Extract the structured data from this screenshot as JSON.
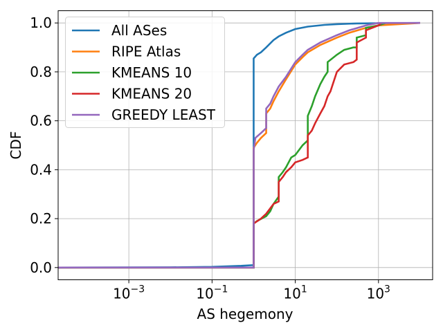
{
  "chart_data": {
    "type": "line",
    "title": "",
    "xlabel": "AS hegemony",
    "ylabel": "CDF",
    "xscale": "log",
    "xlim": [
      2e-05,
      20000
    ],
    "ylim": [
      -0.05,
      1.05
    ],
    "x_ticks": [
      {
        "value": 0.001,
        "base": "10",
        "exp": "−3"
      },
      {
        "value": 0.1,
        "base": "10",
        "exp": "−1"
      },
      {
        "value": 10,
        "base": "10",
        "exp": "1"
      },
      {
        "value": 1000,
        "base": "10",
        "exp": "3"
      }
    ],
    "y_ticks": [
      {
        "value": 0.0,
        "label": "0.0"
      },
      {
        "value": 0.2,
        "label": "0.2"
      },
      {
        "value": 0.4,
        "label": "0.4"
      },
      {
        "value": 0.6,
        "label": "0.6"
      },
      {
        "value": 0.8,
        "label": "0.8"
      },
      {
        "value": 1.0,
        "label": "1.0"
      }
    ],
    "grid": true,
    "legend": {
      "position": "top-left"
    },
    "series": [
      {
        "name": "All ASes",
        "color": "#1f77b4",
        "points": [
          [
            2e-05,
            0.0
          ],
          [
            0.01,
            0.001
          ],
          [
            0.1,
            0.003
          ],
          [
            0.5,
            0.007
          ],
          [
            1.0,
            0.01
          ],
          [
            1.0,
            0.855
          ],
          [
            1.2,
            0.87
          ],
          [
            1.5,
            0.88
          ],
          [
            2.0,
            0.9
          ],
          [
            3.0,
            0.93
          ],
          [
            4.0,
            0.945
          ],
          [
            6.0,
            0.96
          ],
          [
            10,
            0.975
          ],
          [
            20,
            0.985
          ],
          [
            50,
            0.992
          ],
          [
            100,
            0.995
          ],
          [
            300,
            0.998
          ],
          [
            1000,
            0.999
          ],
          [
            10000,
            1.0
          ]
        ]
      },
      {
        "name": "RIPE Atlas",
        "color": "#ff7f0e",
        "points": [
          [
            2e-05,
            0.0
          ],
          [
            1.0,
            0.0
          ],
          [
            1.0,
            0.49
          ],
          [
            1.2,
            0.51
          ],
          [
            1.5,
            0.53
          ],
          [
            2.0,
            0.55
          ],
          [
            2.0,
            0.63
          ],
          [
            2.5,
            0.65
          ],
          [
            3.0,
            0.68
          ],
          [
            4.0,
            0.72
          ],
          [
            6.0,
            0.77
          ],
          [
            10,
            0.83
          ],
          [
            15,
            0.86
          ],
          [
            20,
            0.88
          ],
          [
            40,
            0.91
          ],
          [
            100,
            0.94
          ],
          [
            200,
            0.96
          ],
          [
            500,
            0.98
          ],
          [
            1000,
            0.99
          ],
          [
            10000,
            1.0
          ]
        ]
      },
      {
        "name": "KMEANS 10",
        "color": "#2ca02c",
        "points": [
          [
            2e-05,
            0.0
          ],
          [
            1.0,
            0.0
          ],
          [
            1.0,
            0.18
          ],
          [
            1.2,
            0.19
          ],
          [
            2.0,
            0.21
          ],
          [
            2.5,
            0.23
          ],
          [
            3.0,
            0.26
          ],
          [
            4.0,
            0.29
          ],
          [
            4.0,
            0.37
          ],
          [
            5.0,
            0.39
          ],
          [
            6.0,
            0.41
          ],
          [
            8.0,
            0.45
          ],
          [
            10,
            0.46
          ],
          [
            15,
            0.5
          ],
          [
            20,
            0.52
          ],
          [
            20,
            0.62
          ],
          [
            25,
            0.66
          ],
          [
            30,
            0.7
          ],
          [
            40,
            0.75
          ],
          [
            50,
            0.78
          ],
          [
            60,
            0.8
          ],
          [
            60,
            0.84
          ],
          [
            100,
            0.87
          ],
          [
            150,
            0.89
          ],
          [
            250,
            0.9
          ],
          [
            300,
            0.9
          ],
          [
            300,
            0.94
          ],
          [
            500,
            0.95
          ],
          [
            500,
            0.98
          ],
          [
            1000,
            0.99
          ],
          [
            1500,
            1.0
          ]
        ]
      },
      {
        "name": "KMEANS 20",
        "color": "#d62728",
        "points": [
          [
            2e-05,
            0.0
          ],
          [
            1.0,
            0.0
          ],
          [
            1.0,
            0.18
          ],
          [
            1.5,
            0.2
          ],
          [
            2.0,
            0.22
          ],
          [
            3.0,
            0.26
          ],
          [
            4.0,
            0.27
          ],
          [
            4.0,
            0.35
          ],
          [
            5.0,
            0.37
          ],
          [
            6.0,
            0.39
          ],
          [
            8.0,
            0.41
          ],
          [
            10,
            0.43
          ],
          [
            15,
            0.44
          ],
          [
            20,
            0.45
          ],
          [
            20,
            0.54
          ],
          [
            25,
            0.56
          ],
          [
            30,
            0.59
          ],
          [
            40,
            0.63
          ],
          [
            50,
            0.66
          ],
          [
            60,
            0.7
          ],
          [
            70,
            0.72
          ],
          [
            80,
            0.75
          ],
          [
            100,
            0.8
          ],
          [
            150,
            0.83
          ],
          [
            250,
            0.84
          ],
          [
            300,
            0.85
          ],
          [
            300,
            0.92
          ],
          [
            500,
            0.94
          ],
          [
            500,
            0.97
          ],
          [
            1000,
            0.99
          ],
          [
            1200,
            1.0
          ]
        ]
      },
      {
        "name": "GREEDY LEAST",
        "color": "#9467bd",
        "points": [
          [
            2e-05,
            0.0
          ],
          [
            1.0,
            0.0
          ],
          [
            1.0,
            0.48
          ],
          [
            1.1,
            0.53
          ],
          [
            1.5,
            0.55
          ],
          [
            2.0,
            0.57
          ],
          [
            2.0,
            0.65
          ],
          [
            2.5,
            0.67
          ],
          [
            3.0,
            0.7
          ],
          [
            4.0,
            0.74
          ],
          [
            6.0,
            0.78
          ],
          [
            10,
            0.84
          ],
          [
            15,
            0.87
          ],
          [
            20,
            0.89
          ],
          [
            40,
            0.92
          ],
          [
            100,
            0.95
          ],
          [
            200,
            0.97
          ],
          [
            500,
            0.99
          ],
          [
            1000,
            1.0
          ],
          [
            10000,
            1.0
          ]
        ]
      }
    ]
  }
}
